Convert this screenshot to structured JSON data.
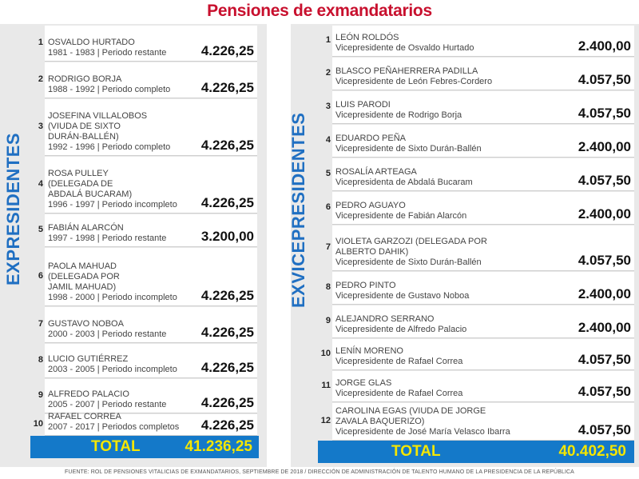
{
  "title": "Pensiones de exmandatarios",
  "left": {
    "label": "EXPRESIDENTES",
    "rows": [
      {
        "n": "1",
        "name": "OSVALDO HURTADO",
        "sub": "1981 - 1983 | Periodo restante",
        "value": "4.226,25"
      },
      {
        "n": "2",
        "name": "RODRIGO BORJA",
        "sub": "1988 - 1992 | Periodo completo",
        "value": "4.226,25"
      },
      {
        "n": "3",
        "name": "JOSEFINA VILLALOBOS\n(VIUDA DE SIXTO\nDURÁN-BALLÉN)",
        "sub": "1992 - 1996 | Periodo completo",
        "value": "4.226,25"
      },
      {
        "n": "4",
        "name": "ROSA PULLEY\n(DELEGADA DE\nABDALÁ BUCARAM)",
        "sub": "1996 - 1997 | Periodo incompleto",
        "value": "4.226,25"
      },
      {
        "n": "5",
        "name": "FABIÁN ALARCÓN",
        "sub": "1997 - 1998 | Periodo restante",
        "value": "3.200,00"
      },
      {
        "n": "6",
        "name": "PAOLA MAHUAD\n(DELEGADA POR\nJAMIL MAHUAD)",
        "sub": "1998 - 2000 | Periodo incompleto",
        "value": "4.226,25"
      },
      {
        "n": "7",
        "name": "GUSTAVO NOBOA",
        "sub": "2000 - 2003 | Periodo restante",
        "value": "4.226,25"
      },
      {
        "n": "8",
        "name": "LUCIO GUTIÉRREZ",
        "sub": "2003 - 2005 | Periodo incompleto",
        "value": "4.226,25"
      },
      {
        "n": "9",
        "name": "ALFREDO PALACIO",
        "sub": "2005 - 2007 | Periodo restante",
        "value": "4.226,25"
      },
      {
        "n": "10",
        "name": "RAFAEL CORREA",
        "sub": "2007 - 2017 | Periodos completos",
        "value": "4.226,25"
      }
    ],
    "total_label": "TOTAL",
    "total_value": "41.236,25"
  },
  "right": {
    "label": "EXVICEPRESIDENTES",
    "rows": [
      {
        "n": "1",
        "name": "LEÓN ROLDÓS",
        "sub": "Vicepresidente de Osvaldo Hurtado",
        "value": "2.400,00"
      },
      {
        "n": "2",
        "name": "BLASCO PEÑAHERRERA PADILLA",
        "sub": "Vicepresidente de León Febres-Cordero",
        "value": "4.057,50"
      },
      {
        "n": "3",
        "name": "LUIS PARODI",
        "sub": "Vicepresidente de Rodrigo Borja",
        "value": "4.057,50"
      },
      {
        "n": "4",
        "name": "EDUARDO PEÑA",
        "sub": "Vicepresidente de Sixto Durán-Ballén",
        "value": "2.400,00"
      },
      {
        "n": "5",
        "name": "ROSALÍA ARTEAGA",
        "sub": "Vicepresidenta de Abdalá Bucaram",
        "value": "4.057,50"
      },
      {
        "n": "6",
        "name": "PEDRO AGUAYO",
        "sub": "Vicepresidente de Fabián Alarcón",
        "value": "2.400,00"
      },
      {
        "n": "7",
        "name": "VIOLETA GARZOZI (DELEGADA POR\nALBERTO DAHIK)",
        "sub": "Vicepresidente de Sixto Durán-Ballén",
        "value": "4.057,50"
      },
      {
        "n": "8",
        "name": "PEDRO PINTO",
        "sub": "Vicepresidente de Gustavo Noboa",
        "value": "2.400,00"
      },
      {
        "n": "9",
        "name": "ALEJANDRO SERRANO",
        "sub": "Vicepresidente de Alfredo Palacio",
        "value": "2.400,00"
      },
      {
        "n": "10",
        "name": "LENÍN MORENO",
        "sub": "Vicepresidente de Rafael Correa",
        "value": "4.057,50"
      },
      {
        "n": "11",
        "name": "JORGE GLAS",
        "sub": "Vicepresidente de Rafael Correa",
        "value": "4.057,50"
      },
      {
        "n": "12",
        "name": "CAROLINA EGAS (VIUDA DE JORGE\nZAVALA BAQUERIZO)",
        "sub": "Vicepresidente de José María Velasco Ibarra",
        "value": "4.057,50"
      }
    ],
    "total_label": "TOTAL",
    "total_value": "40.402,50"
  },
  "source": "FUENTE: ROL DE PENSIONES VITALICIAS DE EXMANDATARIOS, SEPTIEMBRE DE 2018 / DIRECCIÓN DE ADMINISTRACIÓN DE TALENTO HUMANO DE LA PRESIDENCIA DE LA REPÚBLICA",
  "colors": {
    "title": "#c8102e",
    "accent": "#1f6fc2",
    "total_bg": "#1479c9",
    "total_text": "#f5e600",
    "panel_bg": "#e9e9e9"
  }
}
